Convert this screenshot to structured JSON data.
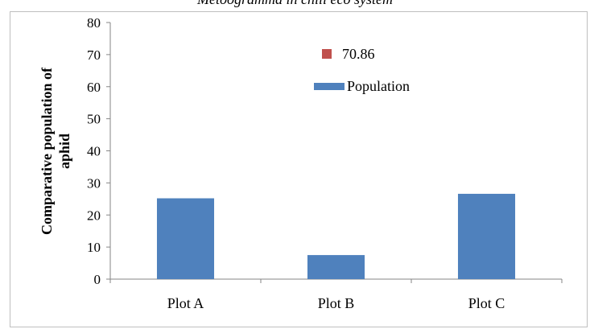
{
  "chart_data": {
    "type": "bar",
    "title": "Metoogramma in chili eco system",
    "ylabel": "Comparative population of aphid",
    "xlabel": "",
    "categories": [
      "Plot A",
      "Plot B",
      "Plot C"
    ],
    "series": [
      {
        "name": "Population",
        "values": [
          25.2,
          7.5,
          26.6
        ]
      }
    ],
    "annotation": "70.86",
    "ylim": [
      0,
      80
    ],
    "yticks": [
      0,
      10,
      20,
      30,
      40,
      50,
      60,
      70,
      80
    ],
    "grid": false,
    "legend_position": "inside-top-center",
    "colors": {
      "bar": "#4f81bd",
      "marker": "#c0504d",
      "axis": "#868686"
    }
  }
}
